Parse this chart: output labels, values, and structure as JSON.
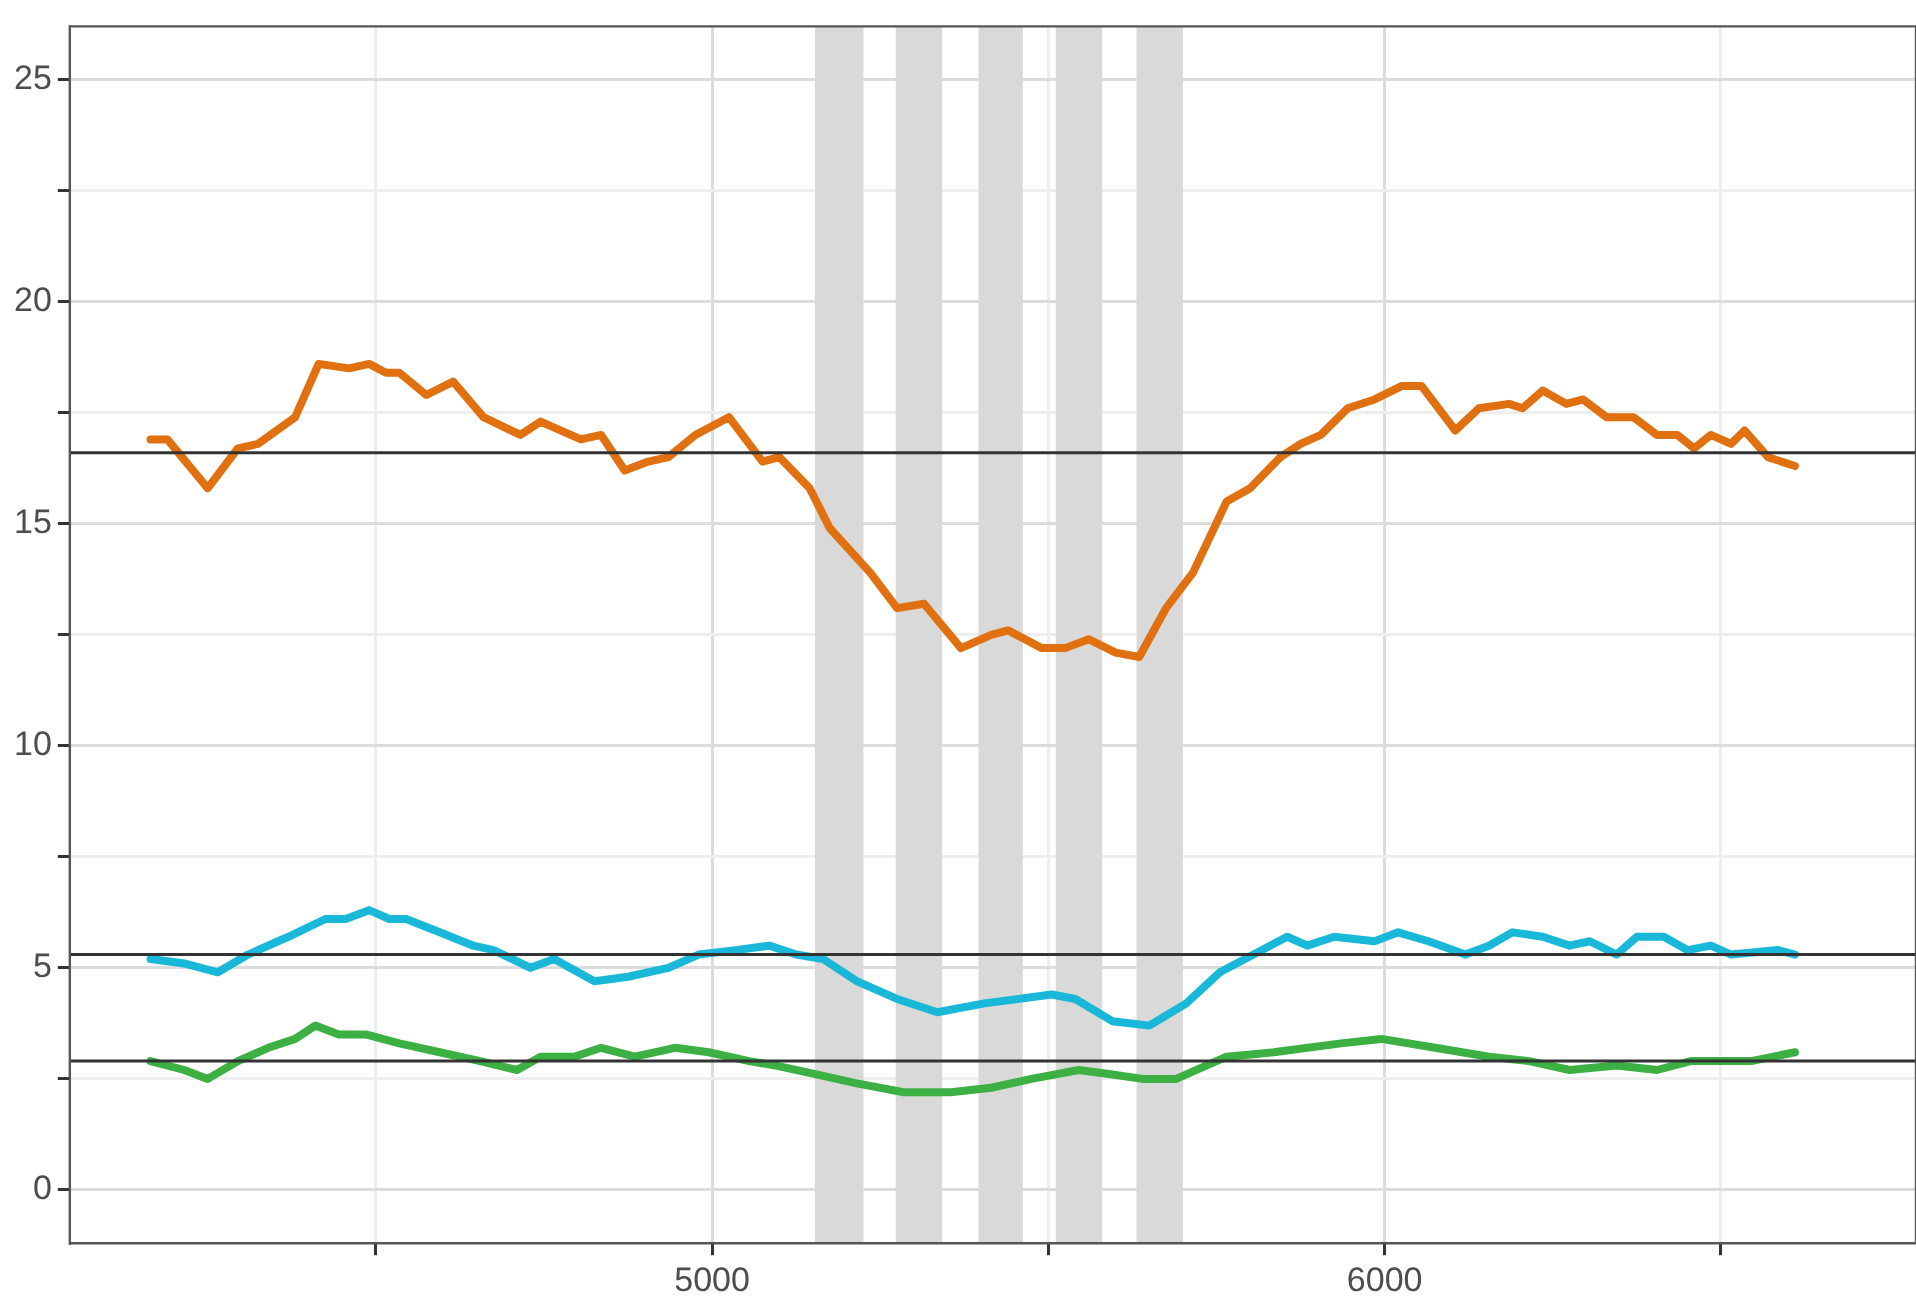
{
  "chart_data": {
    "type": "line",
    "xlim": [
      4045,
      6790
    ],
    "ylim": [
      -1.2,
      26.2
    ],
    "xticks": [
      {
        "value": 4500,
        "label": null
      },
      5000,
      {
        "value": 5500,
        "label": null
      },
      6000,
      {
        "value": 6500,
        "label": null
      }
    ],
    "yticks": [
      0,
      {
        "value": 2.5,
        "label": null
      },
      5,
      {
        "value": 7.5,
        "label": null
      },
      10,
      {
        "value": 12.5,
        "label": null
      },
      15,
      {
        "value": 17.5,
        "label": null
      },
      20,
      {
        "value": 22.5,
        "label": null
      },
      25
    ],
    "grid": true,
    "legend": false,
    "marker": "none",
    "line_style": "solid",
    "bands": [
      {
        "axis": "x",
        "from": 5153,
        "to": 5225,
        "color": "#d9d9d9"
      },
      {
        "axis": "x",
        "from": 5273,
        "to": 5342,
        "color": "#d9d9d9"
      },
      {
        "axis": "x",
        "from": 5396,
        "to": 5462,
        "color": "#d9d9d9"
      },
      {
        "axis": "x",
        "from": 5511,
        "to": 5580,
        "color": "#d9d9d9"
      },
      {
        "axis": "x",
        "from": 5631,
        "to": 5700,
        "color": "#d9d9d9"
      }
    ],
    "ref_lines": [
      {
        "axis": "y",
        "value": 16.6,
        "color": "#333333"
      },
      {
        "axis": "y",
        "value": 5.3,
        "color": "#333333"
      },
      {
        "axis": "y",
        "value": 2.9,
        "color": "#333333"
      }
    ],
    "series": [
      {
        "color": "#e07010",
        "x": [
          4165,
          4190,
          4250,
          4295,
          4325,
          4380,
          4415,
          4460,
          4490,
          4515,
          4535,
          4575,
          4615,
          4660,
          4715,
          4745,
          4805,
          4835,
          4870,
          4905,
          4935,
          4975,
          5025,
          5075,
          5100,
          5145,
          5175,
          5235,
          5275,
          5315,
          5370,
          5415,
          5440,
          5490,
          5525,
          5560,
          5600,
          5635,
          5675,
          5715,
          5765,
          5800,
          5845,
          5875,
          5905,
          5945,
          5985,
          6025,
          6055,
          6105,
          6140,
          6185,
          6205,
          6235,
          6270,
          6295,
          6330,
          6370,
          6405,
          6435,
          6460,
          6485,
          6515,
          6535,
          6570,
          6610
        ],
        "values": [
          16.9,
          16.9,
          15.8,
          16.7,
          16.8,
          17.4,
          18.6,
          18.5,
          18.6,
          18.4,
          18.4,
          17.9,
          18.2,
          17.4,
          17.0,
          17.3,
          16.9,
          17.0,
          16.2,
          16.4,
          16.5,
          17.0,
          17.4,
          16.4,
          16.5,
          15.8,
          14.9,
          13.9,
          13.1,
          13.2,
          12.2,
          12.5,
          12.6,
          12.2,
          12.2,
          12.4,
          12.1,
          12.0,
          13.1,
          13.9,
          15.5,
          15.8,
          16.5,
          16.8,
          17.0,
          17.6,
          17.8,
          18.1,
          18.1,
          17.1,
          17.6,
          17.7,
          17.6,
          18.0,
          17.7,
          17.8,
          17.4,
          17.4,
          17.0,
          17.0,
          16.7,
          17.0,
          16.8,
          17.1,
          16.5,
          16.3
        ]
      },
      {
        "color": "#1ab8d8",
        "x": [
          4165,
          4215,
          4265,
          4310,
          4370,
          4425,
          4455,
          4490,
          4520,
          4545,
          4595,
          4645,
          4675,
          4730,
          4765,
          4825,
          4875,
          4935,
          4980,
          5035,
          5085,
          5125,
          5165,
          5215,
          5275,
          5335,
          5405,
          5505,
          5540,
          5595,
          5650,
          5705,
          5755,
          5805,
          5855,
          5885,
          5925,
          5985,
          6020,
          6065,
          6120,
          6155,
          6190,
          6235,
          6275,
          6305,
          6345,
          6375,
          6415,
          6450,
          6485,
          6515,
          6585,
          6610
        ],
        "values": [
          5.2,
          5.1,
          4.9,
          5.3,
          5.7,
          6.1,
          6.1,
          6.3,
          6.1,
          6.1,
          5.8,
          5.5,
          5.4,
          5.0,
          5.2,
          4.7,
          4.8,
          5.0,
          5.3,
          5.4,
          5.5,
          5.3,
          5.2,
          4.7,
          4.3,
          4.0,
          4.2,
          4.4,
          4.3,
          3.8,
          3.7,
          4.2,
          4.9,
          5.3,
          5.7,
          5.5,
          5.7,
          5.6,
          5.8,
          5.6,
          5.3,
          5.5,
          5.8,
          5.7,
          5.5,
          5.6,
          5.3,
          5.7,
          5.7,
          5.4,
          5.5,
          5.3,
          5.4,
          5.3
        ]
      },
      {
        "color": "#3cb043",
        "x": [
          4165,
          4215,
          4250,
          4295,
          4340,
          4380,
          4410,
          4445,
          4485,
          4535,
          4595,
          4655,
          4710,
          4745,
          4795,
          4835,
          4885,
          4945,
          4995,
          5055,
          5095,
          5155,
          5215,
          5285,
          5355,
          5415,
          5475,
          5545,
          5595,
          5640,
          5690,
          5765,
          5835,
          5935,
          5995,
          6075,
          6155,
          6215,
          6275,
          6345,
          6405,
          6455,
          6545,
          6610
        ],
        "values": [
          2.9,
          2.7,
          2.5,
          2.9,
          3.2,
          3.4,
          3.7,
          3.5,
          3.5,
          3.3,
          3.1,
          2.9,
          2.7,
          3.0,
          3.0,
          3.2,
          3.0,
          3.2,
          3.1,
          2.9,
          2.8,
          2.6,
          2.4,
          2.2,
          2.2,
          2.3,
          2.5,
          2.7,
          2.6,
          2.5,
          2.5,
          3.0,
          3.1,
          3.3,
          3.4,
          3.2,
          3.0,
          2.9,
          2.7,
          2.8,
          2.7,
          2.9,
          2.9,
          3.1
        ]
      }
    ]
  }
}
